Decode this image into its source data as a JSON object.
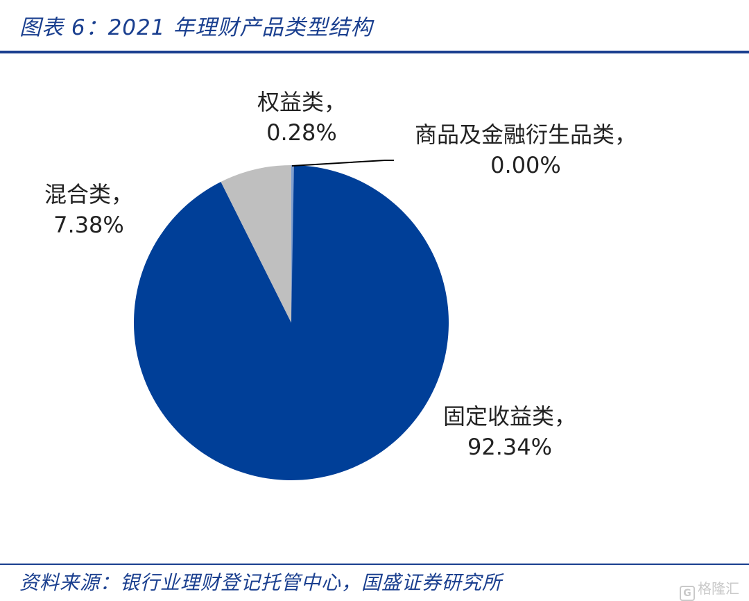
{
  "title": "图表 6：2021 年理财产品类型结构",
  "source": "资料来源：银行业理财登记托管中心，国盛证券研究所",
  "watermark": "格隆汇",
  "colors": {
    "accent": "#1a3f8f",
    "fixed_income": "#003F98",
    "mixed": "#BFBFBF",
    "equity": "#7F9FD0",
    "commodity": "#5B7DB8"
  },
  "chart_data": {
    "type": "pie",
    "title": "2021 年理财产品类型结构",
    "slices": [
      {
        "name": "权益类",
        "value": 0.28,
        "label": "0.28%",
        "color": "#7F9FD0"
      },
      {
        "name": "商品及金融衍生品类",
        "value": 0.0,
        "label": "0.00%",
        "color": "#5B7DB8"
      },
      {
        "name": "固定收益类",
        "value": 92.34,
        "label": "92.34%",
        "color": "#003F98"
      },
      {
        "name": "混合类",
        "value": 7.38,
        "label": "7.38%",
        "color": "#BFBFBF"
      }
    ],
    "start_angle": "12 o'clock",
    "direction": "clockwise",
    "label_suffix": "，"
  }
}
